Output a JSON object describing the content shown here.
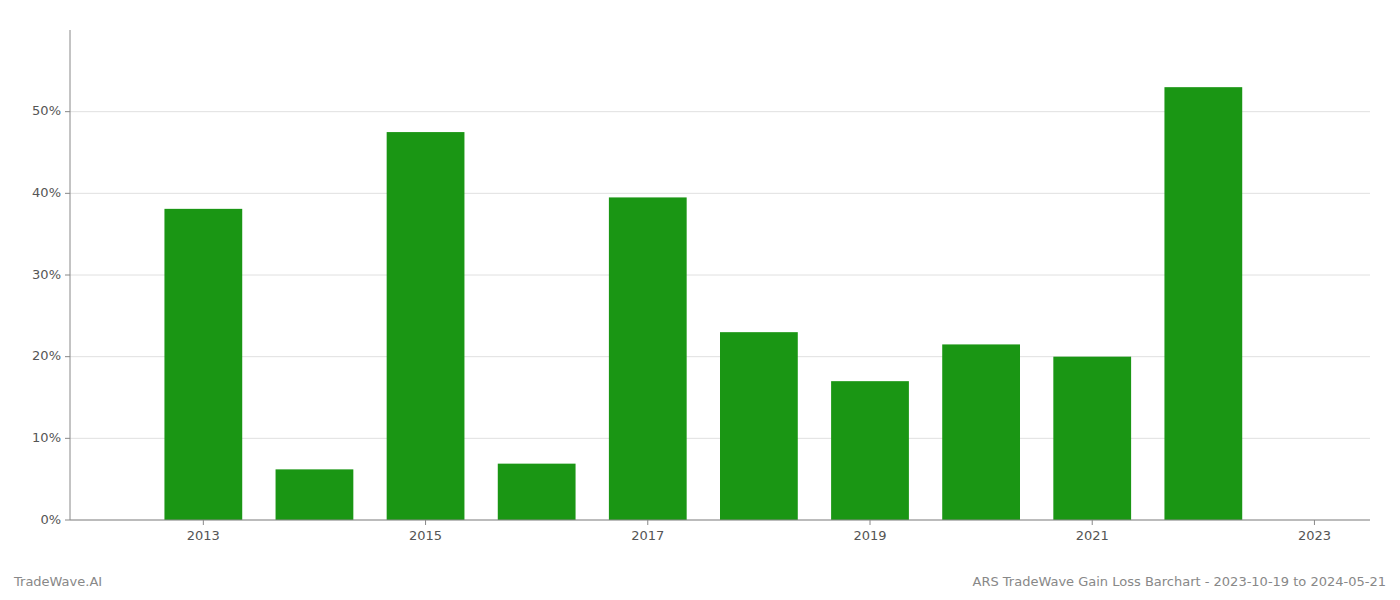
{
  "chart_data": {
    "type": "bar",
    "x": [
      2013,
      2014,
      2015,
      2016,
      2017,
      2018,
      2019,
      2020,
      2021,
      2022
    ],
    "values": [
      0.381,
      0.062,
      0.475,
      0.069,
      0.395,
      0.23,
      0.17,
      0.215,
      0.2,
      0.53
    ],
    "color": "#1a9614",
    "xlim": [
      2011.8,
      2023.5
    ],
    "xticks": [
      2013,
      2015,
      2017,
      2019,
      2021,
      2023
    ],
    "ylim": [
      0,
      0.6
    ],
    "yticks": [
      {
        "value": 0.0,
        "label": "0%"
      },
      {
        "value": 0.1,
        "label": "10%"
      },
      {
        "value": 0.2,
        "label": "20%"
      },
      {
        "value": 0.3,
        "label": "30%"
      },
      {
        "value": 0.4,
        "label": "40%"
      },
      {
        "value": 0.5,
        "label": "50%"
      }
    ],
    "grid": true,
    "annotations": [
      "TradeWave.AI",
      "ARS TradeWave Gain Loss Barchart - 2023-10-19 to 2024-05-21"
    ]
  }
}
